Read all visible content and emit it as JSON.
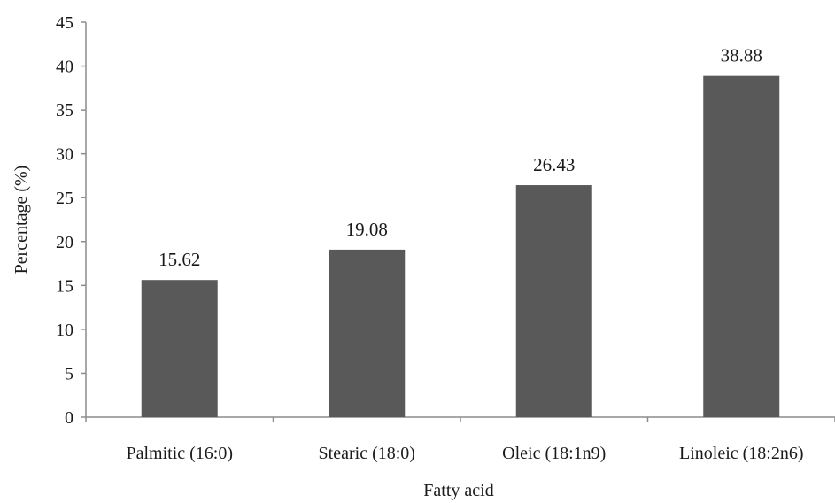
{
  "chart_data": {
    "type": "bar",
    "categories": [
      "Palmitic (16:0)",
      "Stearic (18:0)",
      "Oleic (18:1n9)",
      "Linoleic (18:2n6)"
    ],
    "values": [
      15.62,
      19.08,
      26.43,
      38.88
    ],
    "data_labels": [
      "15.62",
      "19.08",
      "26.43",
      "38.88"
    ],
    "title": "",
    "xlabel": "Fatty acid",
    "ylabel": "Percentage (%)",
    "ylim": [
      0,
      45
    ],
    "yticks": [
      0,
      5,
      10,
      15,
      20,
      25,
      30,
      35,
      40,
      45
    ],
    "bar_color": "#595959",
    "grid": false,
    "legend": "none"
  }
}
